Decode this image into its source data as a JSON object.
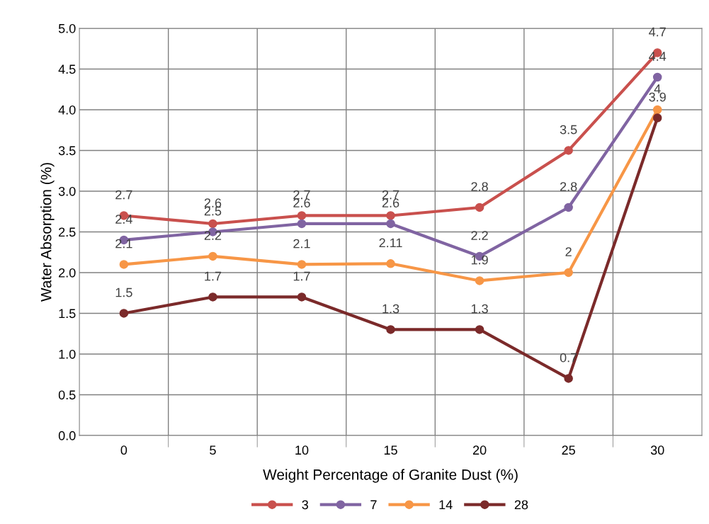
{
  "chart_data": {
    "type": "line",
    "xlabel": "Weight Percentage of Granite Dust (%)",
    "ylabel": "Water Absorption (%)",
    "categories": [
      "0",
      "5",
      "10",
      "15",
      "20",
      "25",
      "30"
    ],
    "series": [
      {
        "name": "3",
        "color": "#c9504d",
        "values": [
          2.7,
          2.6,
          2.7,
          2.7,
          2.8,
          3.5,
          4.7
        ],
        "value_labels": [
          "2.7",
          "2.6",
          "2.7",
          "2.7",
          "2.8",
          "3.5",
          "4.7"
        ]
      },
      {
        "name": "7",
        "color": "#8064a2",
        "values": [
          2.4,
          2.5,
          2.6,
          2.6,
          2.2,
          2.8,
          4.4
        ],
        "value_labels": [
          "2.4",
          "2.5",
          "2.6",
          "2.6",
          "2.2",
          "2.8",
          "4.4"
        ]
      },
      {
        "name": "14",
        "color": "#f79646",
        "values": [
          2.1,
          2.2,
          2.1,
          2.11,
          1.9,
          2,
          4
        ],
        "value_labels": [
          "2.1",
          "2.2",
          "2.1",
          "2.11",
          "1.9",
          "2",
          "4"
        ]
      },
      {
        "name": "28",
        "color": "#7b2a2a",
        "values": [
          1.5,
          1.7,
          1.7,
          1.3,
          1.3,
          0.7,
          3.9
        ],
        "value_labels": [
          "1.5",
          "1.7",
          "1.7",
          "1.3",
          "1.3",
          "0.7",
          "3.9"
        ]
      }
    ],
    "ylim": [
      0,
      5
    ],
    "yticks": [
      {
        "value": 0,
        "label": "0.0"
      },
      {
        "value": 0.5,
        "label": "0.5"
      },
      {
        "value": 1,
        "label": "1.0"
      },
      {
        "value": 1.5,
        "label": "1.5"
      },
      {
        "value": 2,
        "label": "2.0"
      },
      {
        "value": 2.5,
        "label": "2.5"
      },
      {
        "value": 3,
        "label": "3.0"
      },
      {
        "value": 3.5,
        "label": "3.5"
      },
      {
        "value": 4,
        "label": "4.0"
      },
      {
        "value": 4.5,
        "label": "4.5"
      },
      {
        "value": 5,
        "label": "5.0"
      }
    ],
    "grid": true,
    "legend": "bottom",
    "marker": "circle",
    "line_style": "solid"
  }
}
